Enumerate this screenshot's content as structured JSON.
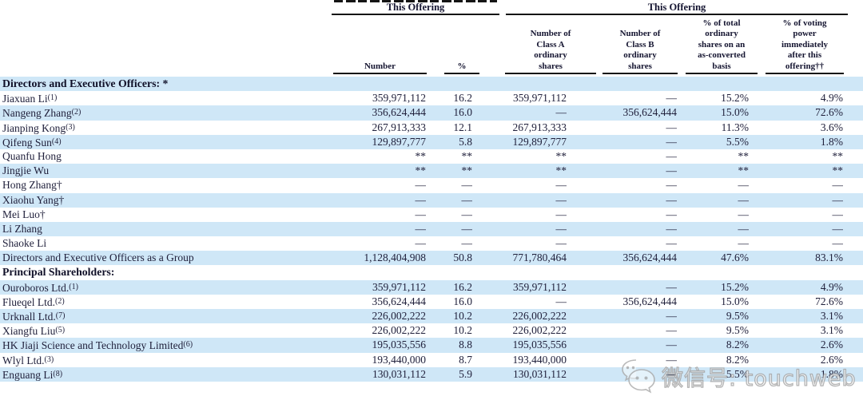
{
  "header": {
    "group1": {
      "title": "This Offering"
    },
    "group2": {
      "title": "This Offering"
    },
    "columns": [
      "Number",
      "%",
      "Number of\nClass A\nordinary\nshares",
      "Number of\nClass B\nordinary\nshares",
      "% of total\nordinary\nshares on an\nas-converted\nbasis",
      "% of voting\npower\nimmediately\nafter this\noffering††"
    ]
  },
  "table": {
    "rows": [
      {
        "label": "Directors and Executive Officers: *",
        "sup": "",
        "bold": true,
        "cells": [
          "",
          "",
          "",
          "",
          "",
          ""
        ]
      },
      {
        "label": "Jiaxuan Li",
        "sup": "(1)",
        "bold": false,
        "cells": [
          "359,971,112",
          "16.2",
          "359,971,112",
          "—",
          "15.2%",
          "4.9%"
        ]
      },
      {
        "label": "Nangeng Zhang",
        "sup": "(2)",
        "bold": false,
        "cells": [
          "356,624,444",
          "16.0",
          "—",
          "356,624,444",
          "15.0%",
          "72.6%"
        ]
      },
      {
        "label": "Jianping Kong",
        "sup": "(3)",
        "bold": false,
        "cells": [
          "267,913,333",
          "12.1",
          "267,913,333",
          "—",
          "11.3%",
          "3.6%"
        ]
      },
      {
        "label": "Qifeng Sun",
        "sup": "(4)",
        "bold": false,
        "cells": [
          "129,897,777",
          "5.8",
          "129,897,777",
          "—",
          "5.5%",
          "1.8%"
        ]
      },
      {
        "label": "Quanfu Hong",
        "sup": "",
        "bold": false,
        "cells": [
          "**",
          "**",
          "**",
          "—",
          "**",
          "**"
        ]
      },
      {
        "label": "Jingjie Wu",
        "sup": "",
        "bold": false,
        "cells": [
          "**",
          "**",
          "**",
          "—",
          "**",
          "**"
        ]
      },
      {
        "label": "Hong Zhang†",
        "sup": "",
        "bold": false,
        "cells": [
          "—",
          "—",
          "—",
          "—",
          "—",
          "—"
        ]
      },
      {
        "label": "Xiaohu Yang†",
        "sup": "",
        "bold": false,
        "cells": [
          "—",
          "—",
          "—",
          "—",
          "—",
          "—"
        ]
      },
      {
        "label": "Mei Luo†",
        "sup": "",
        "bold": false,
        "cells": [
          "—",
          "—",
          "—",
          "—",
          "—",
          "—"
        ]
      },
      {
        "label": "Li Zhang",
        "sup": "",
        "bold": false,
        "cells": [
          "—",
          "—",
          "—",
          "—",
          "—",
          "—"
        ]
      },
      {
        "label": "Shaoke Li",
        "sup": "",
        "bold": false,
        "cells": [
          "—",
          "—",
          "—",
          "—",
          "—",
          "—"
        ]
      },
      {
        "label": "Directors and Executive Officers as a Group",
        "sup": "",
        "bold": false,
        "cells": [
          "1,128,404,908",
          "50.8",
          "771,780,464",
          "356,624,444",
          "47.6%",
          "83.1%"
        ]
      },
      {
        "label": "Principal Shareholders:",
        "sup": "",
        "bold": true,
        "cells": [
          "",
          "",
          "",
          "",
          "",
          ""
        ]
      },
      {
        "label": "Ouroboros Ltd.",
        "sup": "(1)",
        "bold": false,
        "cells": [
          "359,971,112",
          "16.2",
          "359,971,112",
          "—",
          "15.2%",
          "4.9%"
        ]
      },
      {
        "label": "Flueqel Ltd.",
        "sup": "(2)",
        "bold": false,
        "cells": [
          "356,624,444",
          "16.0",
          "—",
          "356,624,444",
          "15.0%",
          "72.6%"
        ]
      },
      {
        "label": "Urknall Ltd.",
        "sup": "(7)",
        "bold": false,
        "cells": [
          "226,002,222",
          "10.2",
          "226,002,222",
          "—",
          "9.5%",
          "3.1%"
        ]
      },
      {
        "label": "Xiangfu Liu",
        "sup": "(5)",
        "bold": false,
        "cells": [
          "226,002,222",
          "10.2",
          "226,002,222",
          "—",
          "9.5%",
          "3.1%"
        ]
      },
      {
        "label": "HK Jiaji Science and Technology Limited",
        "sup": "(6)",
        "bold": false,
        "cells": [
          "195,035,556",
          "8.8",
          "195,035,556",
          "—",
          "8.2%",
          "2.6%"
        ]
      },
      {
        "label": "Wlyl Ltd.",
        "sup": "(3)",
        "bold": false,
        "cells": [
          "193,440,000",
          "8.7",
          "193,440,000",
          "—",
          "8.2%",
          "2.6%"
        ]
      },
      {
        "label": "Enguang Li",
        "sup": "(8)",
        "bold": false,
        "cells": [
          "130,031,112",
          "5.9",
          "130,031,112",
          "—",
          "5.5%",
          "1.8%"
        ]
      }
    ]
  },
  "watermark": {
    "text": "微信号: touchweb"
  },
  "colors": {
    "row_shade": "#cfe7f7",
    "text": "#21213c",
    "rule": "#141414"
  }
}
